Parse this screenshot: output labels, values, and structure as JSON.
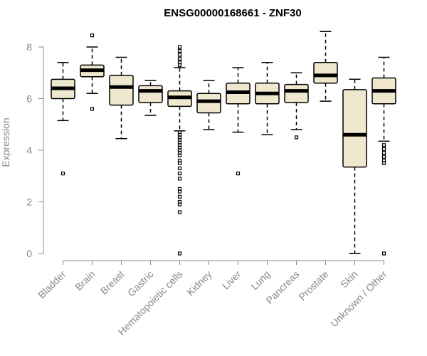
{
  "chart_data": {
    "type": "boxplot",
    "title": "ENSG00000168661 - ZNF30",
    "xlabel": "",
    "ylabel": "Expression",
    "ylim": [
      0,
      8.7
    ],
    "yticks": [
      0,
      2,
      4,
      6,
      8
    ],
    "grid": false,
    "box_fill": "#EFE8CF",
    "categories": [
      "Bladder",
      "Brain",
      "Breast",
      "Gastric",
      "Hematopoietic cells",
      "Kidney",
      "Liver",
      "Lung",
      "Pancreas",
      "Prostate",
      "Skin",
      "Unknown / Other"
    ],
    "series": [
      {
        "category": "Bladder",
        "q1": 6.0,
        "median": 6.4,
        "q3": 6.75,
        "whisker_low": 5.15,
        "whisker_high": 7.4,
        "outliers": [
          3.1
        ]
      },
      {
        "category": "Brain",
        "q1": 6.85,
        "median": 7.1,
        "q3": 7.3,
        "whisker_low": 6.2,
        "whisker_high": 8.0,
        "outliers": [
          8.45,
          5.6
        ]
      },
      {
        "category": "Breast",
        "q1": 5.75,
        "median": 6.45,
        "q3": 6.9,
        "whisker_low": 4.45,
        "whisker_high": 7.6,
        "outliers": []
      },
      {
        "category": "Gastric",
        "q1": 5.85,
        "median": 6.3,
        "q3": 6.5,
        "whisker_low": 5.35,
        "whisker_high": 6.7,
        "outliers": []
      },
      {
        "category": "Hematopoietic cells",
        "q1": 5.7,
        "median": 6.05,
        "q3": 6.3,
        "whisker_low": 4.75,
        "whisker_high": 7.2,
        "outliers": [
          8.0,
          7.85,
          7.7,
          7.55,
          7.4,
          7.3,
          4.7,
          4.6,
          4.5,
          4.4,
          4.3,
          4.2,
          4.1,
          4.0,
          3.9,
          3.8,
          3.6,
          3.5,
          3.3,
          3.1,
          2.9,
          2.5,
          2.4,
          2.2,
          2.0,
          1.9,
          1.6,
          0.0
        ]
      },
      {
        "category": "Kidney",
        "q1": 5.45,
        "median": 5.9,
        "q3": 6.2,
        "whisker_low": 4.8,
        "whisker_high": 6.7,
        "outliers": []
      },
      {
        "category": "Liver",
        "q1": 5.8,
        "median": 6.25,
        "q3": 6.6,
        "whisker_low": 4.7,
        "whisker_high": 7.2,
        "outliers": [
          3.1
        ]
      },
      {
        "category": "Lung",
        "q1": 5.8,
        "median": 6.2,
        "q3": 6.6,
        "whisker_low": 4.6,
        "whisker_high": 7.4,
        "outliers": []
      },
      {
        "category": "Pancreas",
        "q1": 5.85,
        "median": 6.3,
        "q3": 6.55,
        "whisker_low": 4.8,
        "whisker_high": 7.0,
        "outliers": [
          4.5
        ]
      },
      {
        "category": "Prostate",
        "q1": 6.6,
        "median": 6.9,
        "q3": 7.4,
        "whisker_low": 5.9,
        "whisker_high": 8.6,
        "outliers": []
      },
      {
        "category": "Skin",
        "q1": 3.35,
        "median": 4.6,
        "q3": 6.35,
        "whisker_low": 0.0,
        "whisker_high": 6.75,
        "outliers": []
      },
      {
        "category": "Unknown / Other",
        "q1": 5.8,
        "median": 6.3,
        "q3": 6.8,
        "whisker_low": 4.35,
        "whisker_high": 7.6,
        "outliers": [
          4.2,
          4.05,
          3.9,
          3.75,
          3.6,
          3.5,
          0.0
        ]
      }
    ]
  }
}
